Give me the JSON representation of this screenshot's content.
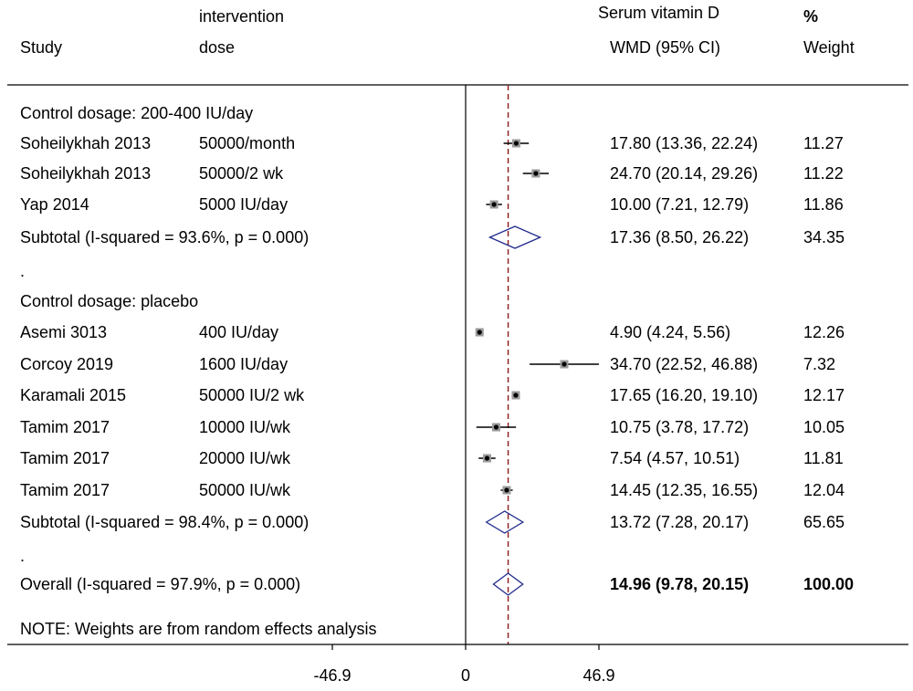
{
  "header": {
    "col_study": "Study",
    "col_intervention_line1": "intervention",
    "col_intervention_line2": "dose",
    "col_effect_line1": "Serum vitamin D",
    "col_effect_line2": "WMD (95% CI)",
    "col_weight_line1": "%",
    "col_weight_line2": "Weight"
  },
  "chart_data": {
    "type": "forest",
    "null_value": 0,
    "overall_line_value": 14.96,
    "axis": {
      "ticks": [
        -46.9,
        0,
        46.9
      ],
      "tick_labels": [
        "-46.9",
        "0",
        "46.9"
      ]
    },
    "note": "NOTE: Weights are from random effects analysis",
    "rows": [
      {
        "kind": "group",
        "label": "Control dosage: 200-400 IU/day"
      },
      {
        "kind": "study",
        "study": "Soheilykhah  2013",
        "dose": "50000/month",
        "es": 17.8,
        "lo": 13.36,
        "hi": 22.24,
        "ci_text": "17.80 (13.36, 22.24)",
        "weight": "11.27"
      },
      {
        "kind": "study",
        "study": "Soheilykhah  2013",
        "dose": "50000/2 wk",
        "es": 24.7,
        "lo": 20.14,
        "hi": 29.26,
        "ci_text": "24.70 (20.14, 29.26)",
        "weight": "11.22"
      },
      {
        "kind": "study",
        "study": "Yap  2014",
        "dose": "5000 IU/day",
        "es": 10.0,
        "lo": 7.21,
        "hi": 12.79,
        "ci_text": "10.00 (7.21, 12.79)",
        "weight": "11.86"
      },
      {
        "kind": "subtotal",
        "label": "Subtotal  (I-squared = 93.6%, p = 0.000)",
        "es": 17.36,
        "lo": 8.5,
        "hi": 26.22,
        "ci_text": "17.36 (8.50, 26.22)",
        "weight": "34.35"
      },
      {
        "kind": "spacer",
        "label": "."
      },
      {
        "kind": "group",
        "label": "Control dosage: placebo"
      },
      {
        "kind": "study",
        "study": "Asemi  3013",
        "dose": "400 IU/day",
        "es": 4.9,
        "lo": 4.24,
        "hi": 5.56,
        "ci_text": "4.90 (4.24, 5.56)",
        "weight": "12.26"
      },
      {
        "kind": "study",
        "study": "Corcoy  2019",
        "dose": "1600 IU/day",
        "es": 34.7,
        "lo": 22.52,
        "hi": 46.88,
        "ci_text": "34.70 (22.52, 46.88)",
        "weight": "7.32"
      },
      {
        "kind": "study",
        "study": "Karamali  2015",
        "dose": "50000 IU/2 wk",
        "es": 17.65,
        "lo": 16.2,
        "hi": 19.1,
        "ci_text": "17.65 (16.20, 19.10)",
        "weight": "12.17"
      },
      {
        "kind": "study",
        "study": "Tamim  2017",
        "dose": "10000 IU/wk",
        "es": 10.75,
        "lo": 3.78,
        "hi": 17.72,
        "ci_text": "10.75 (3.78, 17.72)",
        "weight": "10.05"
      },
      {
        "kind": "study",
        "study": "Tamim  2017",
        "dose": "20000 IU/wk",
        "es": 7.54,
        "lo": 4.57,
        "hi": 10.51,
        "ci_text": "7.54 (4.57, 10.51)",
        "weight": "11.81"
      },
      {
        "kind": "study",
        "study": "Tamim  2017",
        "dose": "50000 IU/wk",
        "es": 14.45,
        "lo": 12.35,
        "hi": 16.55,
        "ci_text": "14.45 (12.35, 16.55)",
        "weight": "12.04"
      },
      {
        "kind": "subtotal",
        "label": "Subtotal  (I-squared = 98.4%, p = 0.000)",
        "es": 13.72,
        "lo": 7.28,
        "hi": 20.17,
        "ci_text": "13.72 (7.28, 20.17)",
        "weight": "65.65"
      },
      {
        "kind": "spacer",
        "label": "."
      },
      {
        "kind": "overall",
        "label": "Overall  (I-squared = 97.9%, p = 0.000)",
        "es": 14.96,
        "lo": 9.78,
        "hi": 20.15,
        "ci_text": "14.96 (9.78, 20.15)",
        "weight": "100.00"
      }
    ],
    "colors": {
      "ci_line": "#000000",
      "diamond": "#1f2a8c",
      "box_fill": "#9a9a9a",
      "overall_line": "#8b1a1a"
    }
  }
}
